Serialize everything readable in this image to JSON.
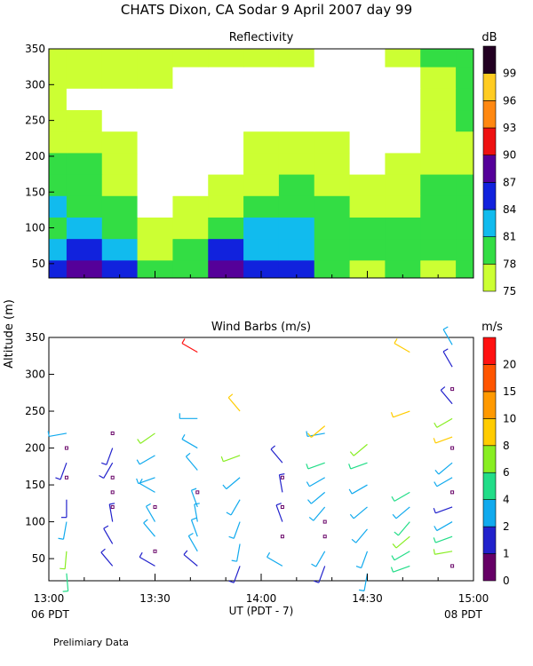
{
  "header": {
    "title": "CHATS Dixon, CA  Sodar   9 April 2007   day  99",
    "ylabel_shared": "Altitude (m)",
    "xlabel": "UT  (PDT - 7)",
    "left_local": "06 PDT",
    "right_local": "08 PDT",
    "footnote": "Prelimiary Data"
  },
  "chart_data": [
    {
      "type": "heatmap",
      "title": "Reflectivity",
      "colorbar_unit": "dB",
      "x": [
        "13:00",
        "13:30",
        "14:00",
        "14:30",
        "15:00"
      ],
      "xlim": [
        "13:00",
        "15:00"
      ],
      "ylim": [
        30,
        350
      ],
      "yticks": [
        50,
        100,
        150,
        200,
        250,
        300,
        350
      ],
      "levels": [
        75,
        78,
        81,
        84,
        87,
        90,
        93,
        96,
        99
      ],
      "level_colors": [
        "#ccff33",
        "#33dd44",
        "#11bbee",
        "#1122dd",
        "#550099",
        "#ee1111",
        "#ff8811",
        "#ffcc22",
        "#220022"
      ],
      "altitudes_m": [
        40,
        70,
        100,
        130,
        160,
        190,
        220,
        250,
        280,
        310,
        340
      ],
      "times": [
        "13:00",
        "13:10",
        "13:20",
        "13:30",
        "13:40",
        "13:50",
        "14:00",
        "14:10",
        "14:20",
        "14:30",
        "14:40",
        "14:50",
        "15:00"
      ],
      "values_db": [
        [
          86,
          87,
          85,
          78,
          80,
          88,
          86,
          84,
          79,
          77,
          78,
          77,
          78
        ],
        [
          82,
          84,
          81,
          77,
          79,
          85,
          83,
          82,
          80,
          78,
          79,
          78,
          79
        ],
        [
          80,
          81,
          79,
          75,
          76,
          78,
          82,
          82,
          80,
          78,
          79,
          79,
          79
        ],
        [
          82,
          80,
          78,
          74,
          75,
          76,
          78,
          80,
          78,
          76,
          77,
          78,
          78
        ],
        [
          79,
          78,
          77,
          74,
          73,
          75,
          77,
          78,
          77,
          75,
          76,
          78,
          78
        ],
        [
          80,
          78,
          76,
          73,
          72,
          74,
          76,
          77,
          75,
          74,
          75,
          77,
          77
        ],
        [
          77,
          76,
          75,
          73,
          72,
          74,
          75,
          76,
          75,
          73,
          74,
          76,
          77
        ],
        [
          76,
          75,
          74,
          73,
          72,
          73,
          74,
          74,
          73,
          73,
          74,
          75,
          78
        ],
        [
          75,
          74,
          74,
          74,
          73,
          73,
          74,
          73,
          73,
          73,
          74,
          76,
          78
        ],
        [
          76,
          75,
          75,
          75,
          74,
          74,
          74,
          74,
          73,
          73,
          74,
          77,
          78
        ],
        [
          76,
          76,
          76,
          76,
          75,
          75,
          75,
          75,
          74,
          74,
          75,
          78,
          79
        ]
      ]
    },
    {
      "type": "scatter",
      "title": "Wind Barbs (m/s)",
      "colorbar_unit": "m/s",
      "xlim": [
        "13:00",
        "15:00"
      ],
      "ylim": [
        20,
        350
      ],
      "yticks": [
        50,
        100,
        150,
        200,
        250,
        300,
        350
      ],
      "speed_levels": [
        0,
        1,
        2,
        4,
        6,
        8,
        10,
        15,
        20
      ],
      "speed_colors": [
        "#660066",
        "#2222cc",
        "#11aaee",
        "#22dd88",
        "#88ee22",
        "#ffcc00",
        "#ff9900",
        "#ff5500",
        "#ff1111"
      ],
      "calm_marker_color": "#660066",
      "times": [
        "13:05",
        "13:18",
        "13:30",
        "13:42",
        "13:54",
        "14:06",
        "14:18",
        "14:30",
        "14:42",
        "14:54"
      ],
      "barbs": [
        {
          "time": "13:05",
          "alt_m": 30,
          "speed": 5,
          "dir": 175
        },
        {
          "time": "13:05",
          "alt_m": 60,
          "speed": 6,
          "dir": 185
        },
        {
          "time": "13:05",
          "alt_m": 100,
          "speed": 3,
          "dir": 190
        },
        {
          "time": "13:05",
          "alt_m": 130,
          "speed": 1,
          "dir": 180
        },
        {
          "time": "13:05",
          "alt_m": 160,
          "speed": 0,
          "dir": 0
        },
        {
          "time": "13:05",
          "alt_m": 180,
          "speed": 1,
          "dir": 200
        },
        {
          "time": "13:05",
          "alt_m": 200,
          "speed": 0,
          "dir": 0
        },
        {
          "time": "13:05",
          "alt_m": 220,
          "speed": 3,
          "dir": 260
        },
        {
          "time": "13:18",
          "alt_m": 40,
          "speed": 1,
          "dir": 320
        },
        {
          "time": "13:18",
          "alt_m": 70,
          "speed": 1,
          "dir": 330
        },
        {
          "time": "13:18",
          "alt_m": 100,
          "speed": 1,
          "dir": 350
        },
        {
          "time": "13:18",
          "alt_m": 120,
          "speed": 0,
          "dir": 0
        },
        {
          "time": "13:18",
          "alt_m": 140,
          "speed": 0,
          "dir": 0
        },
        {
          "time": "13:18",
          "alt_m": 160,
          "speed": 0,
          "dir": 0
        },
        {
          "time": "13:18",
          "alt_m": 180,
          "speed": 1,
          "dir": 210
        },
        {
          "time": "13:18",
          "alt_m": 200,
          "speed": 1,
          "dir": 200
        },
        {
          "time": "13:18",
          "alt_m": 220,
          "speed": 0,
          "dir": 0
        },
        {
          "time": "13:30",
          "alt_m": 40,
          "speed": 1,
          "dir": 300
        },
        {
          "time": "13:30",
          "alt_m": 60,
          "speed": 0,
          "dir": 0
        },
        {
          "time": "13:30",
          "alt_m": 80,
          "speed": 2,
          "dir": 320
        },
        {
          "time": "13:30",
          "alt_m": 100,
          "speed": 2,
          "dir": 330
        },
        {
          "time": "13:30",
          "alt_m": 120,
          "speed": 0,
          "dir": 0
        },
        {
          "time": "13:30",
          "alt_m": 140,
          "speed": 2,
          "dir": 300
        },
        {
          "time": "13:30",
          "alt_m": 160,
          "speed": 2,
          "dir": 250
        },
        {
          "time": "13:30",
          "alt_m": 190,
          "speed": 2,
          "dir": 240
        },
        {
          "time": "13:30",
          "alt_m": 220,
          "speed": 6,
          "dir": 235
        },
        {
          "time": "13:42",
          "alt_m": 40,
          "speed": 1,
          "dir": 310
        },
        {
          "time": "13:42",
          "alt_m": 60,
          "speed": 2,
          "dir": 330
        },
        {
          "time": "13:42",
          "alt_m": 80,
          "speed": 2,
          "dir": 340
        },
        {
          "time": "13:42",
          "alt_m": 100,
          "speed": 2,
          "dir": 350
        },
        {
          "time": "13:42",
          "alt_m": 120,
          "speed": 2,
          "dir": 340
        },
        {
          "time": "13:42",
          "alt_m": 140,
          "speed": 0,
          "dir": 0
        },
        {
          "time": "13:42",
          "alt_m": 170,
          "speed": 2,
          "dir": 320
        },
        {
          "time": "13:42",
          "alt_m": 200,
          "speed": 2,
          "dir": 300
        },
        {
          "time": "13:42",
          "alt_m": 240,
          "speed": 2,
          "dir": 270
        },
        {
          "time": "13:42",
          "alt_m": 330,
          "speed": 20,
          "dir": 300
        },
        {
          "time": "13:54",
          "alt_m": 40,
          "speed": 1,
          "dir": 200
        },
        {
          "time": "13:54",
          "alt_m": 70,
          "speed": 2,
          "dir": 190
        },
        {
          "time": "13:54",
          "alt_m": 100,
          "speed": 2,
          "dir": 200
        },
        {
          "time": "13:54",
          "alt_m": 130,
          "speed": 2,
          "dir": 210
        },
        {
          "time": "13:54",
          "alt_m": 160,
          "speed": 2,
          "dir": 230
        },
        {
          "time": "13:54",
          "alt_m": 190,
          "speed": 6,
          "dir": 250
        },
        {
          "time": "13:54",
          "alt_m": 250,
          "speed": 9,
          "dir": 320
        },
        {
          "time": "14:06",
          "alt_m": 40,
          "speed": 2,
          "dir": 300
        },
        {
          "time": "14:06",
          "alt_m": 80,
          "speed": 0,
          "dir": 0
        },
        {
          "time": "14:06",
          "alt_m": 100,
          "speed": 1,
          "dir": 340
        },
        {
          "time": "14:06",
          "alt_m": 120,
          "speed": 0,
          "dir": 0
        },
        {
          "time": "14:06",
          "alt_m": 140,
          "speed": 1,
          "dir": 350
        },
        {
          "time": "14:06",
          "alt_m": 160,
          "speed": 0,
          "dir": 0
        },
        {
          "time": "14:06",
          "alt_m": 180,
          "speed": 1,
          "dir": 320
        },
        {
          "time": "14:18",
          "alt_m": 40,
          "speed": 1,
          "dir": 200
        },
        {
          "time": "14:18",
          "alt_m": 60,
          "speed": 2,
          "dir": 210
        },
        {
          "time": "14:18",
          "alt_m": 80,
          "speed": 0,
          "dir": 0
        },
        {
          "time": "14:18",
          "alt_m": 100,
          "speed": 0,
          "dir": 0
        },
        {
          "time": "14:18",
          "alt_m": 120,
          "speed": 2,
          "dir": 220
        },
        {
          "time": "14:18",
          "alt_m": 140,
          "speed": 2,
          "dir": 230
        },
        {
          "time": "14:18",
          "alt_m": 160,
          "speed": 2,
          "dir": 240
        },
        {
          "time": "14:18",
          "alt_m": 180,
          "speed": 4,
          "dir": 250
        },
        {
          "time": "14:18",
          "alt_m": 220,
          "speed": 2,
          "dir": 260
        },
        {
          "time": "14:18",
          "alt_m": 230,
          "speed": 9,
          "dir": 230
        },
        {
          "time": "14:30",
          "alt_m": 30,
          "speed": 2,
          "dir": 190
        },
        {
          "time": "14:30",
          "alt_m": 60,
          "speed": 2,
          "dir": 200
        },
        {
          "time": "14:30",
          "alt_m": 90,
          "speed": 2,
          "dir": 220
        },
        {
          "time": "14:30",
          "alt_m": 120,
          "speed": 2,
          "dir": 230
        },
        {
          "time": "14:30",
          "alt_m": 150,
          "speed": 2,
          "dir": 240
        },
        {
          "time": "14:30",
          "alt_m": 180,
          "speed": 4,
          "dir": 250
        },
        {
          "time": "14:30",
          "alt_m": 205,
          "speed": 6,
          "dir": 230
        },
        {
          "time": "14:42",
          "alt_m": 40,
          "speed": 4,
          "dir": 250
        },
        {
          "time": "14:42",
          "alt_m": 60,
          "speed": 4,
          "dir": 240
        },
        {
          "time": "14:42",
          "alt_m": 80,
          "speed": 6,
          "dir": 230
        },
        {
          "time": "14:42",
          "alt_m": 100,
          "speed": 4,
          "dir": 220
        },
        {
          "time": "14:42",
          "alt_m": 120,
          "speed": 2,
          "dir": 230
        },
        {
          "time": "14:42",
          "alt_m": 140,
          "speed": 4,
          "dir": 240
        },
        {
          "time": "14:42",
          "alt_m": 250,
          "speed": 9,
          "dir": 250
        },
        {
          "time": "14:42",
          "alt_m": 330,
          "speed": 9,
          "dir": 300
        },
        {
          "time": "14:54",
          "alt_m": 40,
          "speed": 0,
          "dir": 0
        },
        {
          "time": "14:54",
          "alt_m": 60,
          "speed": 6,
          "dir": 260
        },
        {
          "time": "14:54",
          "alt_m": 80,
          "speed": 4,
          "dir": 250
        },
        {
          "time": "14:54",
          "alt_m": 100,
          "speed": 2,
          "dir": 240
        },
        {
          "time": "14:54",
          "alt_m": 120,
          "speed": 1,
          "dir": 250
        },
        {
          "time": "14:54",
          "alt_m": 140,
          "speed": 0,
          "dir": 0
        },
        {
          "time": "14:54",
          "alt_m": 160,
          "speed": 2,
          "dir": 240
        },
        {
          "time": "14:54",
          "alt_m": 180,
          "speed": 2,
          "dir": 230
        },
        {
          "time": "14:54",
          "alt_m": 200,
          "speed": 0,
          "dir": 0
        },
        {
          "time": "14:54",
          "alt_m": 215,
          "speed": 9,
          "dir": 250
        },
        {
          "time": "14:54",
          "alt_m": 240,
          "speed": 6,
          "dir": 240
        },
        {
          "time": "14:54",
          "alt_m": 260,
          "speed": 1,
          "dir": 320
        },
        {
          "time": "14:54",
          "alt_m": 280,
          "speed": 0,
          "dir": 0
        },
        {
          "time": "14:54",
          "alt_m": 310,
          "speed": 1,
          "dir": 330
        },
        {
          "time": "14:54",
          "alt_m": 340,
          "speed": 2,
          "dir": 330
        }
      ]
    }
  ]
}
